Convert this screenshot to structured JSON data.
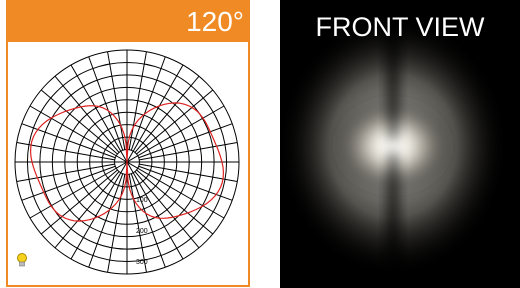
{
  "header": {
    "beam_angle": "120°"
  },
  "polar": {
    "labels": [
      "100",
      "200",
      "300"
    ]
  },
  "front_view": {
    "title": "FRONT VIEW"
  }
}
